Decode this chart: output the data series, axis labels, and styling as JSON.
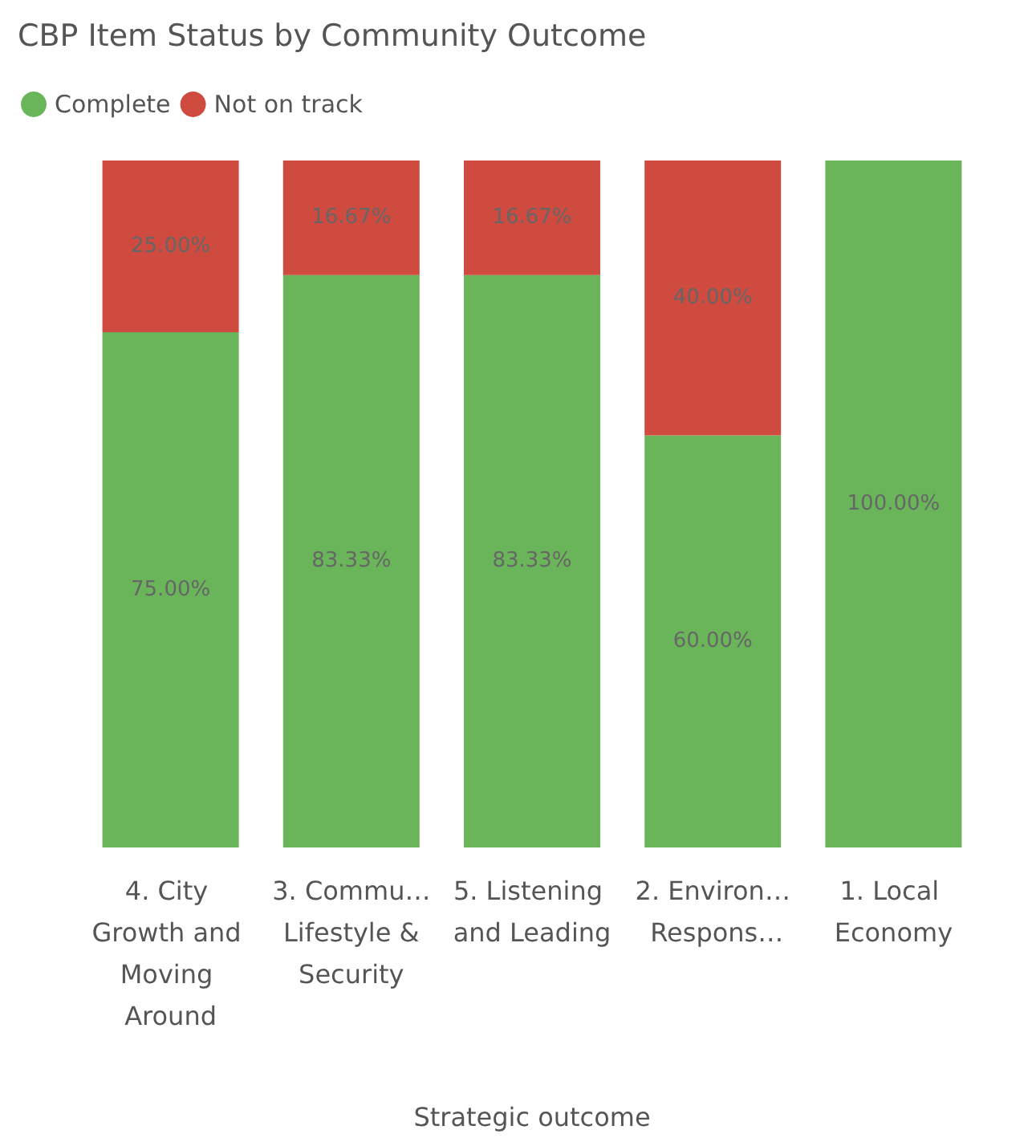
{
  "chart_data": {
    "type": "bar",
    "stacked": true,
    "title": "CBP Item Status by Community Outcome",
    "xlabel": "Strategic outcome",
    "categories": [
      "4. City Growth and Moving Around",
      "3. Commu… Lifestyle & Security",
      "5. Listening and Leading",
      "2. Environ… Respons…",
      "1. Local Economy"
    ],
    "series": [
      {
        "name": "Complete",
        "color": "#6ab55a",
        "values": [
          75,
          83.33,
          83.33,
          60,
          100
        ],
        "value_labels": [
          "75.00%",
          "83.33%",
          "83.33%",
          "60.00%",
          "100.00%"
        ]
      },
      {
        "name": "Not on track",
        "color": "#cf4a3f",
        "values": [
          25,
          16.67,
          16.67,
          40,
          0
        ],
        "value_labels": [
          "25.00%",
          "16.67%",
          "16.67%",
          "40.00%",
          null
        ]
      }
    ],
    "legend": "top left"
  }
}
